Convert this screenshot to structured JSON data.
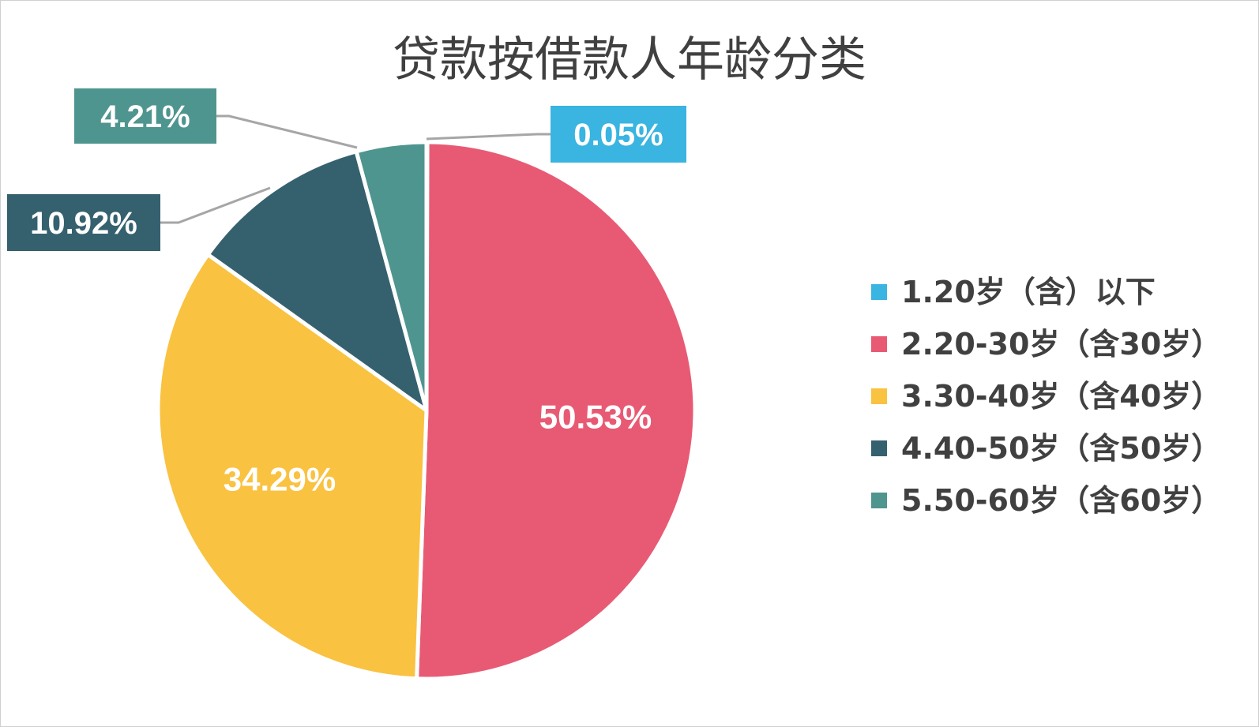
{
  "chart_data": {
    "type": "pie",
    "title": "贷款按借款人年龄分类",
    "categories": [
      "1.20岁（含）以下",
      "2.20-30岁（含30岁）",
      "3.30-40岁（含40岁）",
      "4.40-50岁（含50岁）",
      "5.50-60岁（含60岁）"
    ],
    "values": [
      0.05,
      50.53,
      34.29,
      10.92,
      4.21
    ],
    "labels": [
      "0.05%",
      "50.53%",
      "34.29%",
      "10.92%",
      "4.21%"
    ],
    "colors": [
      "#3ab4e0",
      "#e85a74",
      "#f9c241",
      "#35616f",
      "#4f958f"
    ],
    "legend_position": "right",
    "start_angle": "12 o'clock",
    "direction": "clockwise"
  }
}
